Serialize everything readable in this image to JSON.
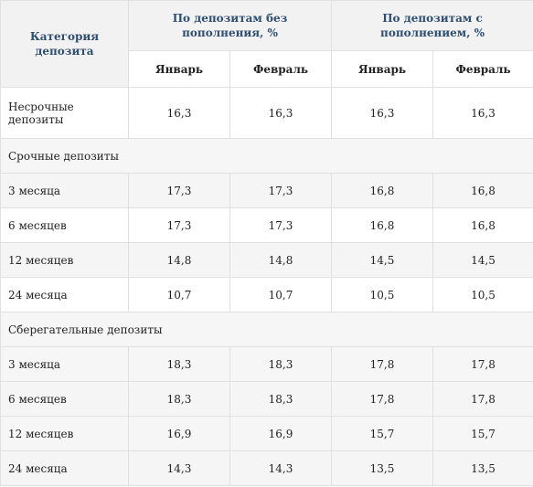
{
  "table": {
    "header": {
      "category": "Категория депозита",
      "group_no_topup": "По депозитам без пополнения, %",
      "group_topup": "По депозитам с пополнением, %",
      "months": [
        "Январь",
        "Февраль",
        "Январь",
        "Февраль"
      ]
    },
    "rows": [
      {
        "type": "data",
        "label": "Несрочные депозиты",
        "values": [
          "16,3",
          "16,3",
          "16,3",
          "16,3"
        ]
      },
      {
        "type": "section",
        "label": "Срочные депозиты"
      },
      {
        "type": "data",
        "label": "3 месяца",
        "values": [
          "17,3",
          "17,3",
          "16,8",
          "16,8"
        ]
      },
      {
        "type": "data",
        "label": "6 месяцев",
        "values": [
          "17,3",
          "17,3",
          "16,8",
          "16,8"
        ]
      },
      {
        "type": "data",
        "label": "12 месяцев",
        "values": [
          "14,8",
          "14,8",
          "14,5",
          "14,5"
        ]
      },
      {
        "type": "data",
        "label": "24 месяца",
        "values": [
          "10,7",
          "10,7",
          "10,5",
          "10,5"
        ]
      },
      {
        "type": "section",
        "label": "Сберегательные депозиты"
      },
      {
        "type": "data",
        "label": "3 месяца",
        "values": [
          "18,3",
          "18,3",
          "17,8",
          "17,8"
        ]
      },
      {
        "type": "data",
        "label": "6 месяцев",
        "values": [
          "18,3",
          "18,3",
          "17,8",
          "17,8"
        ]
      },
      {
        "type": "data",
        "label": "12 месяцев",
        "values": [
          "16,9",
          "16,9",
          "15,7",
          "15,7"
        ]
      },
      {
        "type": "data",
        "label": "24 месяца",
        "values": [
          "14,3",
          "14,3",
          "13,5",
          "13,5"
        ]
      }
    ]
  }
}
